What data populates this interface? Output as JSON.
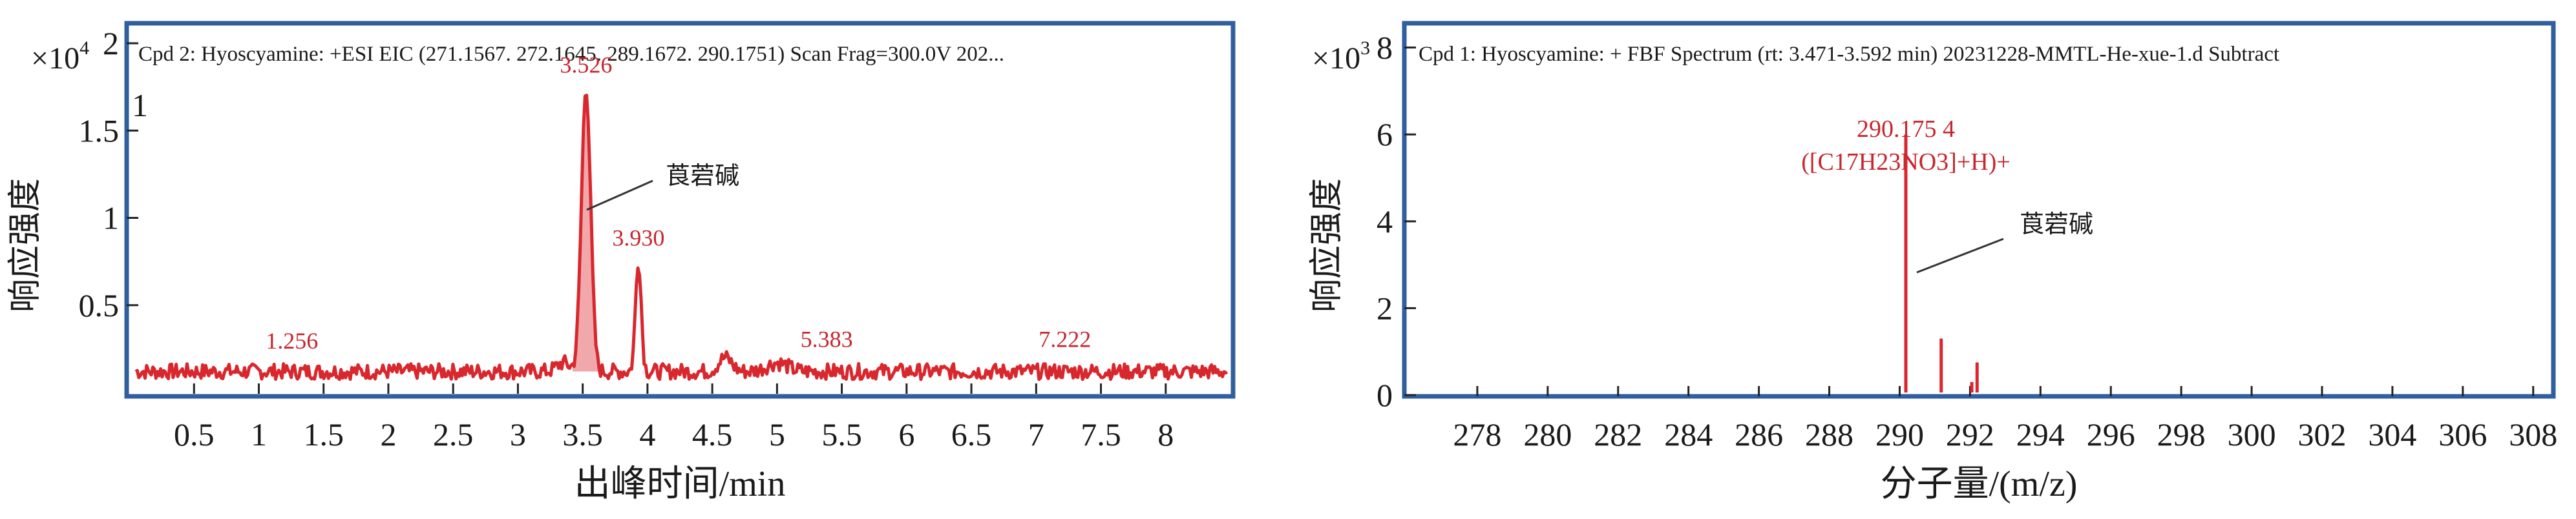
{
  "colors": {
    "frame": "#2f5f9e",
    "trace": "#d9272e",
    "trace_fill": "#e8797c",
    "label_red": "#c8262d",
    "text": "#1a1a1a"
  },
  "panels": [
    {
      "header": "Cpd 2: Hyoscyamine: +ESI EIC (271.1567. 272.1645. 289.1672. 290.1751) Scan Frag=300.0V 202...",
      "multiplier": "×10",
      "multiplier_exp": "4",
      "y_extra_tick": "1",
      "ylabel": "响应强度",
      "xlabel": "出峰时间/min",
      "compound_annotation": "莨菪碱"
    },
    {
      "header": "Cpd 1: Hyoscyamine: + FBF Spectrum (rt: 3.471-3.592 min) 20231228-MMTL-He-xue-1.d Subtract",
      "multiplier": "×10",
      "multiplier_exp": "3",
      "ylabel": "响应强度",
      "xlabel": "分子量/(m/z)",
      "compound_annotation": "莨菪碱"
    }
  ],
  "chart_data": [
    {
      "type": "line",
      "title": "Cpd 2: Hyoscyamine: +ESI EIC (271.1567. 272.1645. 289.1672. 290.1751) Scan Frag=300.0V 202...",
      "xlabel": "出峰时间/min",
      "ylabel": "响应强度",
      "y_scale_multiplier": "×10^4",
      "xlim": [
        0,
        8.5
      ],
      "ylim": [
        0,
        2.1
      ],
      "x_ticks": [
        0.5,
        1,
        1.5,
        2,
        2.5,
        3,
        3.5,
        4,
        4.5,
        5,
        5.5,
        6,
        6.5,
        7,
        7.5,
        8
      ],
      "x_tick_labels": [
        "0.5",
        "1",
        "1.5",
        "2",
        "2.5",
        "3",
        "3.5",
        "4",
        "4.5",
        "5",
        "5.5",
        "6",
        "6.5",
        "7",
        "7.5",
        "8"
      ],
      "y_ticks": [
        0.5,
        1,
        1.5,
        2
      ],
      "y_tick_labels": [
        "0.5",
        "1",
        "1.5",
        "2"
      ],
      "baseline_level": 0.12,
      "peaks": [
        {
          "x": 1.256,
          "y": 0.17,
          "label": "1.256"
        },
        {
          "x": 3.526,
          "y": 1.75,
          "label": "3.526"
        },
        {
          "x": 3.93,
          "y": 0.76,
          "label": "3.930"
        },
        {
          "x": 5.383,
          "y": 0.18,
          "label": "5.383"
        },
        {
          "x": 7.222,
          "y": 0.18,
          "label": "7.222"
        }
      ],
      "grid": false
    },
    {
      "type": "bar",
      "title": "Cpd 1: Hyoscyamine: + FBF Spectrum (rt: 3.471-3.592 min) 20231228-MMTL-He-xue-1.d Subtract",
      "xlabel": "分子量/(m/z)",
      "ylabel": "响应强度",
      "y_scale_multiplier": "×10^3",
      "xlim": [
        276,
        308.5
      ],
      "ylim": [
        0,
        8.5
      ],
      "x_ticks": [
        278,
        280,
        282,
        284,
        286,
        288,
        290,
        292,
        294,
        296,
        298,
        300,
        302,
        304,
        306,
        308
      ],
      "x_tick_labels": [
        "278",
        "280",
        "282",
        "284",
        "286",
        "288",
        "290",
        "292",
        "294",
        "296",
        "298",
        "300",
        "302",
        "304",
        "306",
        "308"
      ],
      "y_ticks": [
        0,
        2,
        4,
        6,
        8
      ],
      "y_tick_labels": [
        "0",
        "2",
        "4",
        "6",
        "8"
      ],
      "sticks": [
        {
          "x": 290.175,
          "y": 6.0
        },
        {
          "x": 291.18,
          "y": 1.3
        },
        {
          "x": 292.2,
          "y": 0.75
        },
        {
          "x": 292.05,
          "y": 0.3
        }
      ],
      "peak_label_value": "290.175 4",
      "peak_label_formula": "([C17H23NO3]+H)+",
      "grid": false
    }
  ]
}
